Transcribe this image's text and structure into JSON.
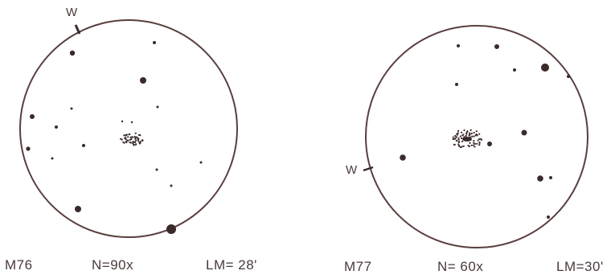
{
  "sketches": [
    {
      "object": "M76",
      "magnification": "N=90x",
      "limiting_magnitude": "LM= 28'",
      "west_marker": "W"
    },
    {
      "object": "M77",
      "magnification": "N= 60x",
      "limiting_magnitude": "LM=30'",
      "west_marker": "W"
    }
  ],
  "colors": {
    "ink": "#5a3e3e",
    "star": "#3a2a2a"
  }
}
